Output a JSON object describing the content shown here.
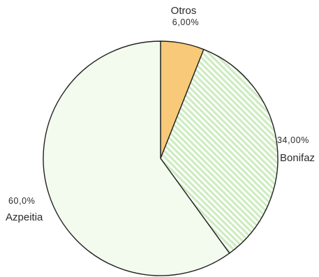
{
  "chart_data": {
    "type": "pie",
    "title": "",
    "slices": [
      {
        "label": "Otros",
        "value": 6.0,
        "value_text": "6,00%",
        "color": "#f7c978",
        "pattern": "solid"
      },
      {
        "label": "Bonifaz",
        "value": 34.0,
        "value_text": "34,00%",
        "color": "#cdecc0",
        "pattern": "diagonal-stripes"
      },
      {
        "label": "Azpeitia",
        "value": 60.0,
        "value_text": "60,0%",
        "color": "#f3faee",
        "pattern": "solid"
      }
    ],
    "start": "12 o'clock",
    "direction": "clockwise",
    "legend": "none"
  }
}
